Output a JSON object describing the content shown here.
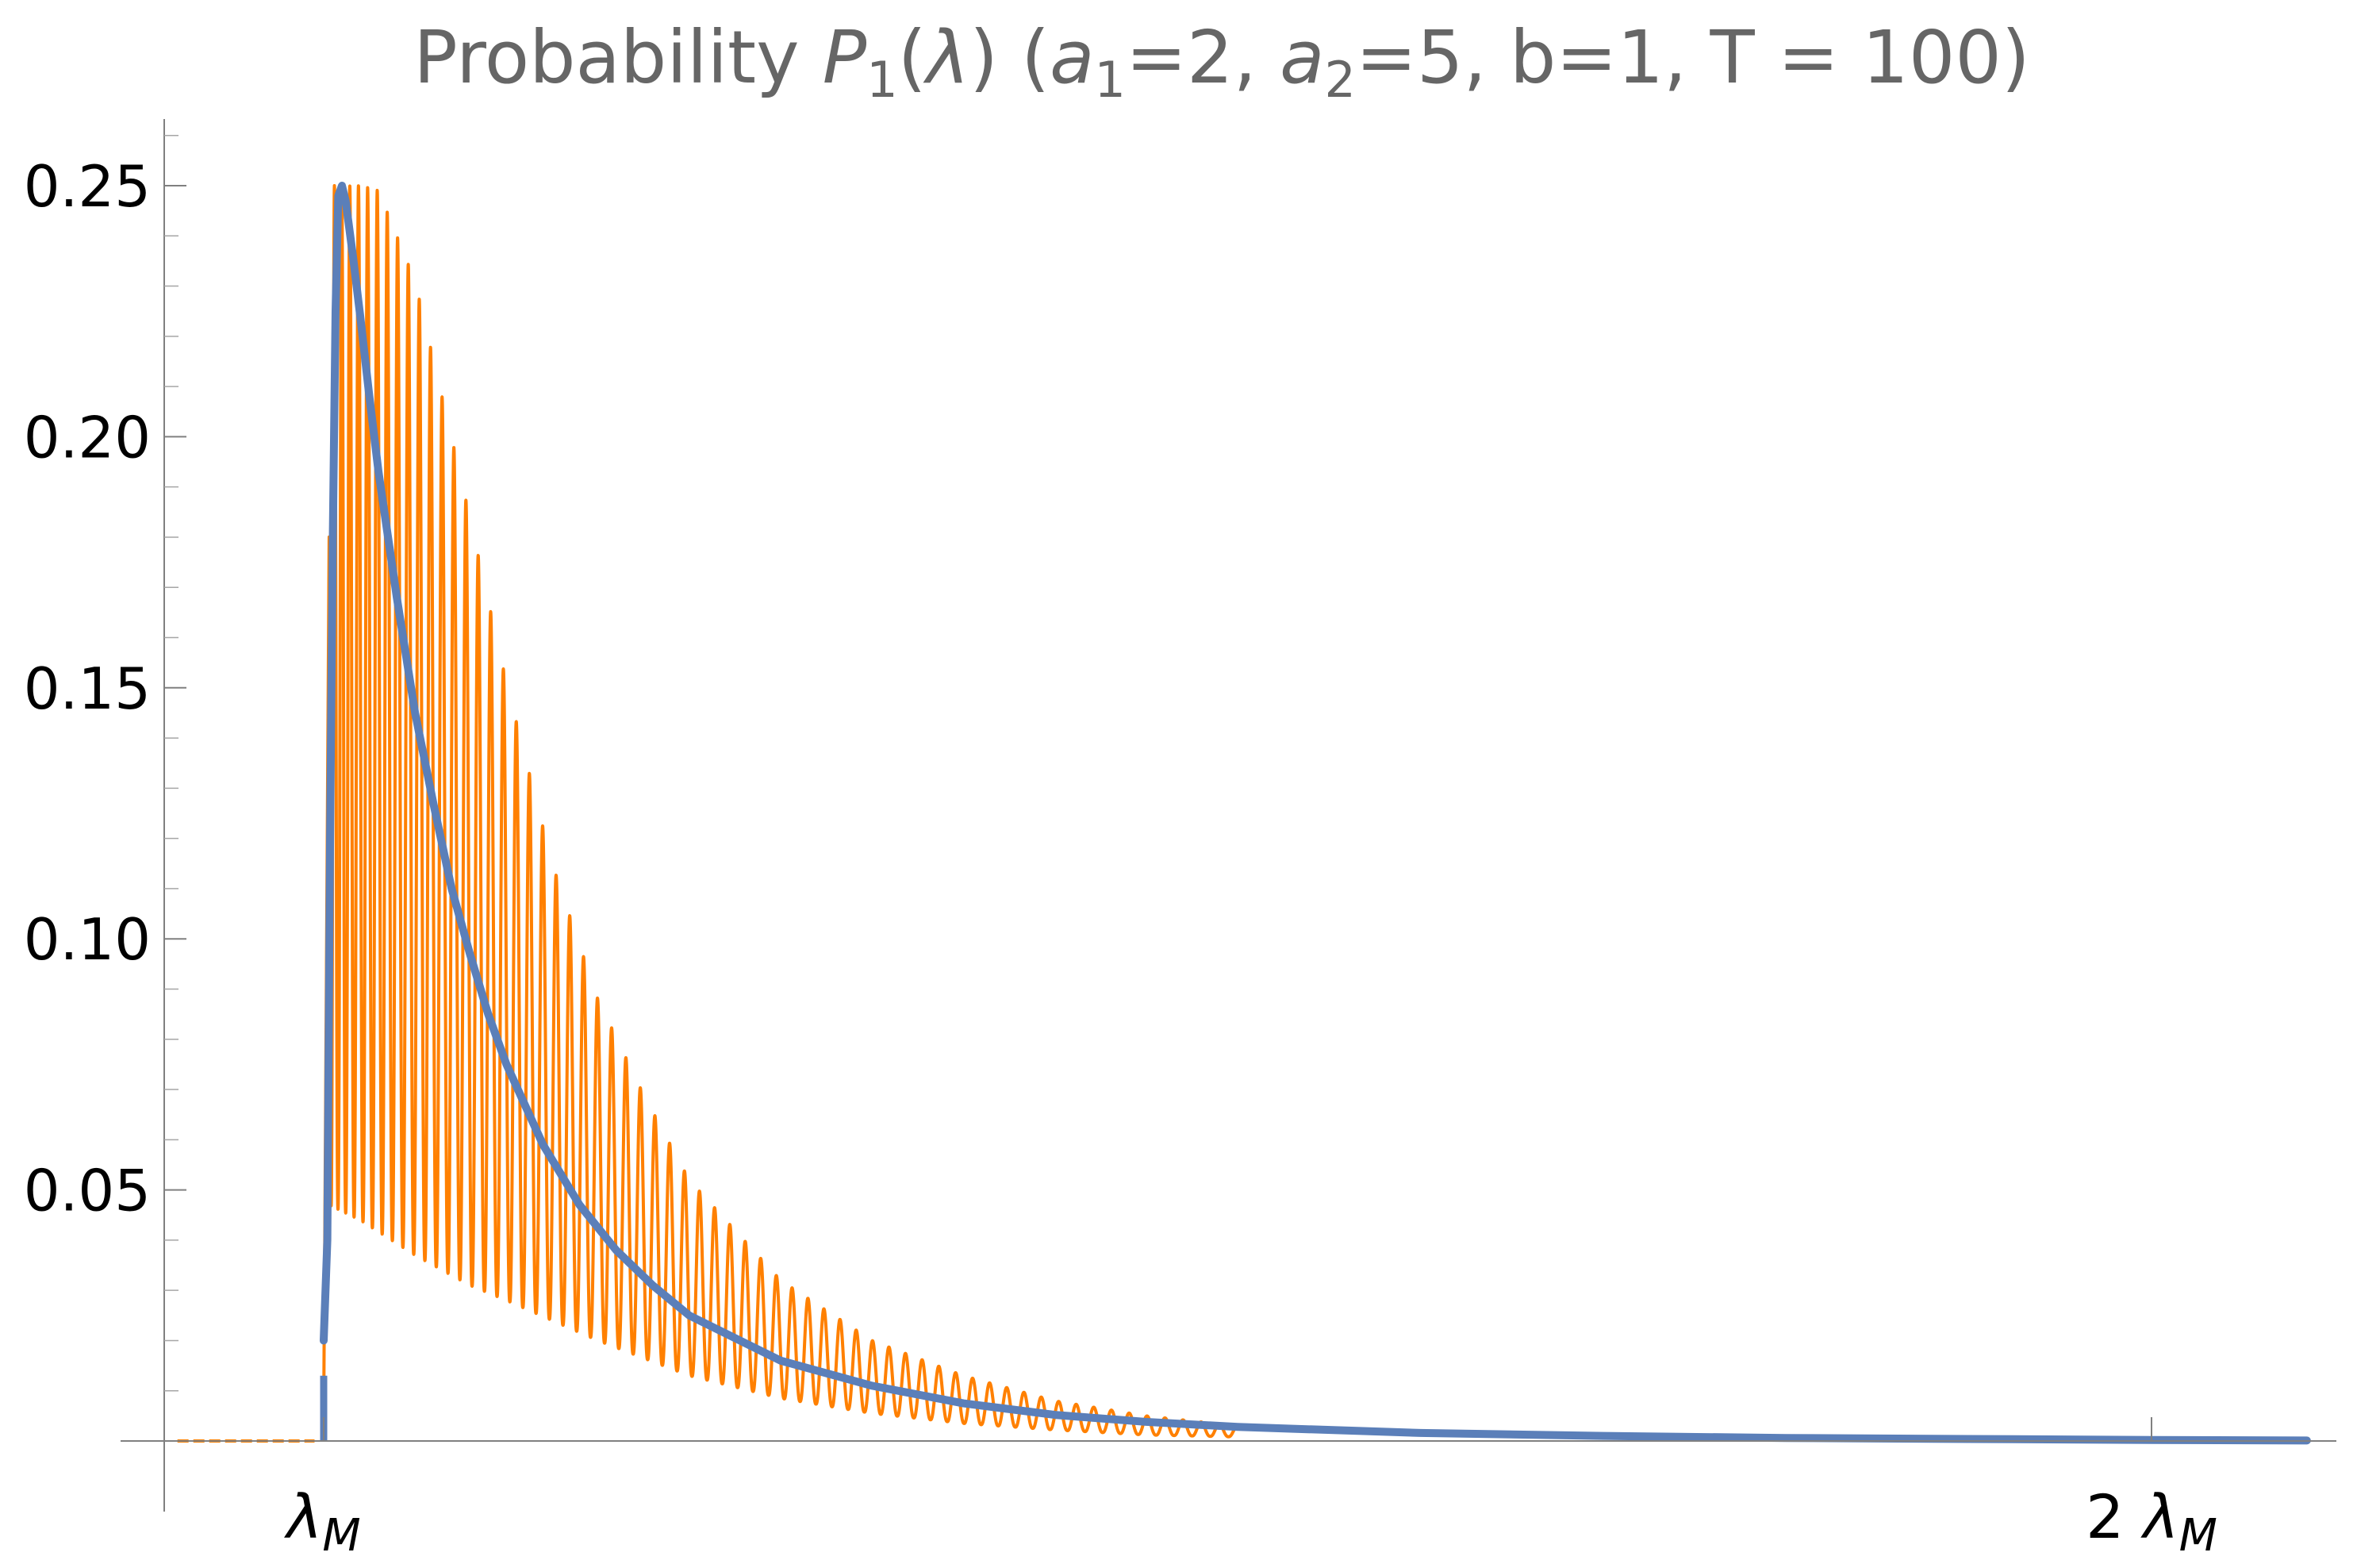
{
  "chart_data": {
    "type": "line",
    "title": {
      "prefix": "Probability ",
      "p_symbol": "P",
      "p_sub": "1",
      "lambda_open": "(",
      "lambda_symbol": "λ",
      "lambda_close": ") (",
      "a_symbol": "a",
      "a1_sub": "1",
      "a1_value": "=2, ",
      "a2_sub": "2",
      "a2_value": "=5, b=1, T = 100)"
    },
    "x_axis": {
      "unit_symbol": "λ",
      "unit_sub": "M",
      "range": [
        0.92,
        2.09
      ],
      "ticks": [
        {
          "value": 1,
          "coef": "",
          "symbol": "λ",
          "sub": "M"
        },
        {
          "value": 2,
          "coef": "2 ",
          "symbol": "λ",
          "sub": "M"
        }
      ]
    },
    "y_axis": {
      "range": [
        0,
        0.263
      ],
      "ticks": [
        {
          "value": 0.05,
          "label": "0.05"
        },
        {
          "value": 0.1,
          "label": "0.10"
        },
        {
          "value": 0.15,
          "label": "0.15"
        },
        {
          "value": 0.2,
          "label": "0.20"
        },
        {
          "value": 0.25,
          "label": "0.25"
        }
      ],
      "minor_step": 0.01
    },
    "params": {
      "a1": 2,
      "a2": 5,
      "b": 1,
      "T": 100
    },
    "series": [
      {
        "color": "#ff8000",
        "style": "oscillating",
        "x_start": 1.0,
        "x_end": 1.5,
        "oscillations": 64,
        "peak": 0.25,
        "envelope_lower": [
          [
            1.003,
            0.047
          ],
          [
            1.02,
            0.044
          ],
          [
            1.05,
            0.037
          ],
          [
            1.08,
            0.031
          ],
          [
            1.1,
            0.028
          ],
          [
            1.15,
            0.02
          ],
          [
            1.2,
            0.013
          ],
          [
            1.25,
            0.0085
          ],
          [
            1.3,
            0.0055
          ],
          [
            1.35,
            0.0035
          ],
          [
            1.4,
            0.0022
          ],
          [
            1.45,
            0.0012
          ],
          [
            1.5,
            0.0008
          ]
        ],
        "envelope_upper": [
          [
            1.003,
            0.25
          ],
          [
            1.02,
            0.25
          ],
          [
            1.03,
            0.249
          ],
          [
            1.05,
            0.231
          ],
          [
            1.075,
            0.192
          ],
          [
            1.1,
            0.151
          ],
          [
            1.125,
            0.115
          ],
          [
            1.15,
            0.088
          ],
          [
            1.175,
            0.069
          ],
          [
            1.2,
            0.052
          ],
          [
            1.25,
            0.032
          ],
          [
            1.3,
            0.02
          ],
          [
            1.35,
            0.013
          ],
          [
            1.4,
            0.008
          ],
          [
            1.45,
            0.005
          ],
          [
            1.5,
            0.003
          ]
        ],
        "flat_left": {
          "x_start": 0.92,
          "x_end": 0.995,
          "y": 0
        }
      },
      {
        "color": "#5b7fb9",
        "style": "smooth",
        "points": [
          [
            1.0,
            0.0
          ],
          [
            1.002,
            0.04
          ],
          [
            1.0035,
            0.12
          ],
          [
            1.005,
            0.18
          ],
          [
            1.0065,
            0.225
          ],
          [
            1.008,
            0.248
          ],
          [
            1.01,
            0.25
          ],
          [
            1.012,
            0.247
          ],
          [
            1.016,
            0.236
          ],
          [
            1.02,
            0.224
          ],
          [
            1.025,
            0.208
          ],
          [
            1.03,
            0.193
          ],
          [
            1.04,
            0.168
          ],
          [
            1.05,
            0.145
          ],
          [
            1.06,
            0.127
          ],
          [
            1.07,
            0.11
          ],
          [
            1.08,
            0.097
          ],
          [
            1.09,
            0.085
          ],
          [
            1.1,
            0.075
          ],
          [
            1.12,
            0.059
          ],
          [
            1.14,
            0.047
          ],
          [
            1.16,
            0.038
          ],
          [
            1.18,
            0.031
          ],
          [
            1.2,
            0.025
          ],
          [
            1.25,
            0.016
          ],
          [
            1.3,
            0.011
          ],
          [
            1.35,
            0.0075
          ],
          [
            1.4,
            0.0052
          ],
          [
            1.45,
            0.0038
          ],
          [
            1.5,
            0.0028
          ],
          [
            1.6,
            0.0016
          ],
          [
            1.7,
            0.001
          ],
          [
            1.8,
            0.0006
          ],
          [
            1.9,
            0.0004
          ],
          [
            2.0,
            0.0002
          ],
          [
            2.085,
            0.0001
          ]
        ],
        "dash_below": {
          "x": 1.0,
          "y_from": 0.0,
          "y_to": 0.013
        }
      }
    ]
  }
}
